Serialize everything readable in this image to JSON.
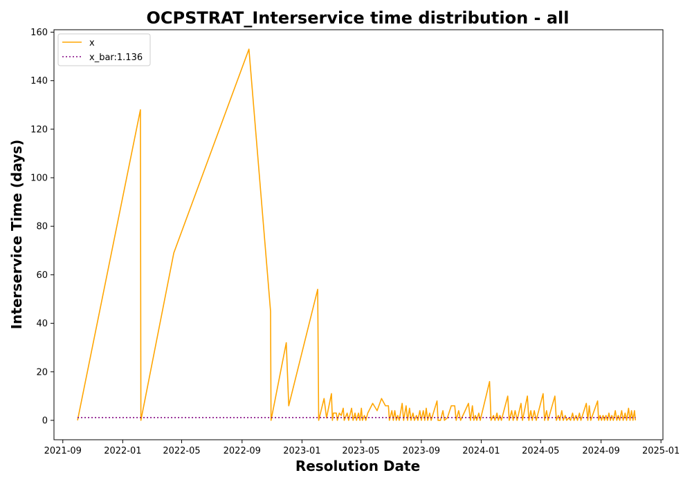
{
  "chart_data": {
    "type": "line",
    "title": "OCPSTRAT_Interservice time distribution - all",
    "xlabel": "Resolution Date",
    "ylabel": "Interservice Time (days)",
    "xlim": [
      "2021-08-14",
      "2025-01-05"
    ],
    "ylim": [
      -8,
      161
    ],
    "xticks": [
      "2021-09",
      "2022-01",
      "2022-05",
      "2022-09",
      "2023-01",
      "2023-05",
      "2023-09",
      "2024-01",
      "2024-05",
      "2024-09",
      "2025-01"
    ],
    "yticks": [
      0,
      20,
      40,
      60,
      80,
      100,
      120,
      140,
      160
    ],
    "grid": false,
    "legend": {
      "position": "upper-left",
      "entries": [
        "x",
        "x_bar:1.136"
      ]
    },
    "series": [
      {
        "name": "x",
        "style": "solid",
        "color": "#ffa500",
        "points": [
          [
            "2021-10-01",
            0
          ],
          [
            "2022-02-06",
            128
          ],
          [
            "2022-02-07",
            0
          ],
          [
            "2022-04-15",
            69
          ],
          [
            "2022-09-15",
            153
          ],
          [
            "2022-10-29",
            45
          ],
          [
            "2022-10-30",
            0
          ],
          [
            "2022-11-30",
            32
          ],
          [
            "2022-12-05",
            6
          ],
          [
            "2023-02-02",
            54
          ],
          [
            "2023-02-04",
            0
          ],
          [
            "2023-02-15",
            9
          ],
          [
            "2023-02-20",
            1
          ],
          [
            "2023-03-02",
            11
          ],
          [
            "2023-03-04",
            0
          ],
          [
            "2023-03-06",
            3
          ],
          [
            "2023-03-12",
            3
          ],
          [
            "2023-03-14",
            0
          ],
          [
            "2023-03-18",
            3
          ],
          [
            "2023-03-22",
            2
          ],
          [
            "2023-03-26",
            5
          ],
          [
            "2023-03-28",
            0
          ],
          [
            "2023-04-03",
            3
          ],
          [
            "2023-04-06",
            0
          ],
          [
            "2023-04-12",
            5
          ],
          [
            "2023-04-15",
            0
          ],
          [
            "2023-04-19",
            3
          ],
          [
            "2023-04-22",
            0
          ],
          [
            "2023-04-26",
            3
          ],
          [
            "2023-04-29",
            0
          ],
          [
            "2023-05-02",
            5
          ],
          [
            "2023-05-04",
            0
          ],
          [
            "2023-05-08",
            2
          ],
          [
            "2023-05-11",
            0
          ],
          [
            "2023-05-15",
            3
          ],
          [
            "2023-05-25",
            7
          ],
          [
            "2023-06-03",
            4
          ],
          [
            "2023-06-12",
            9
          ],
          [
            "2023-06-20",
            6
          ],
          [
            "2023-06-26",
            6
          ],
          [
            "2023-06-28",
            0
          ],
          [
            "2023-07-03",
            4
          ],
          [
            "2023-07-06",
            0
          ],
          [
            "2023-07-09",
            4
          ],
          [
            "2023-07-12",
            0
          ],
          [
            "2023-07-15",
            2
          ],
          [
            "2023-07-18",
            0
          ],
          [
            "2023-07-24",
            7
          ],
          [
            "2023-07-27",
            0
          ],
          [
            "2023-08-01",
            6
          ],
          [
            "2023-08-04",
            0
          ],
          [
            "2023-08-08",
            5
          ],
          [
            "2023-08-11",
            0
          ],
          [
            "2023-08-15",
            3
          ],
          [
            "2023-08-18",
            0
          ],
          [
            "2023-08-22",
            2
          ],
          [
            "2023-08-25",
            0
          ],
          [
            "2023-08-29",
            4
          ],
          [
            "2023-09-01",
            0
          ],
          [
            "2023-09-05",
            4
          ],
          [
            "2023-09-08",
            0
          ],
          [
            "2023-09-11",
            5
          ],
          [
            "2023-09-14",
            0
          ],
          [
            "2023-09-18",
            3
          ],
          [
            "2023-09-21",
            0
          ],
          [
            "2023-10-03",
            8
          ],
          [
            "2023-10-05",
            0
          ],
          [
            "2023-10-10",
            0
          ],
          [
            "2023-10-15",
            4
          ],
          [
            "2023-10-18",
            0
          ],
          [
            "2023-10-24",
            1
          ],
          [
            "2023-11-01",
            6
          ],
          [
            "2023-11-08",
            6
          ],
          [
            "2023-11-11",
            0
          ],
          [
            "2023-11-16",
            4
          ],
          [
            "2023-11-20",
            0
          ],
          [
            "2023-11-27",
            3
          ],
          [
            "2023-12-06",
            7
          ],
          [
            "2023-12-10",
            0
          ],
          [
            "2023-12-14",
            6
          ],
          [
            "2023-12-17",
            0
          ],
          [
            "2023-12-20",
            2
          ],
          [
            "2023-12-23",
            0
          ],
          [
            "2023-12-27",
            3
          ],
          [
            "2023-12-30",
            0
          ],
          [
            "2024-01-18",
            16
          ],
          [
            "2024-01-21",
            0
          ],
          [
            "2024-01-26",
            2
          ],
          [
            "2024-01-29",
            0
          ],
          [
            "2024-02-02",
            3
          ],
          [
            "2024-02-05",
            0
          ],
          [
            "2024-02-08",
            2
          ],
          [
            "2024-02-11",
            0
          ],
          [
            "2024-02-24",
            10
          ],
          [
            "2024-02-27",
            0
          ],
          [
            "2024-03-03",
            4
          ],
          [
            "2024-03-06",
            0
          ],
          [
            "2024-03-10",
            4
          ],
          [
            "2024-03-14",
            0
          ],
          [
            "2024-03-22",
            7
          ],
          [
            "2024-03-25",
            0
          ],
          [
            "2024-04-04",
            10
          ],
          [
            "2024-04-07",
            0
          ],
          [
            "2024-04-11",
            4
          ],
          [
            "2024-04-14",
            0
          ],
          [
            "2024-04-18",
            4
          ],
          [
            "2024-04-22",
            0
          ],
          [
            "2024-05-06",
            11
          ],
          [
            "2024-05-09",
            0
          ],
          [
            "2024-05-13",
            4
          ],
          [
            "2024-05-16",
            0
          ],
          [
            "2024-05-30",
            10
          ],
          [
            "2024-06-02",
            0
          ],
          [
            "2024-06-06",
            2
          ],
          [
            "2024-06-09",
            0
          ],
          [
            "2024-06-13",
            4
          ],
          [
            "2024-06-16",
            0
          ],
          [
            "2024-06-20",
            2
          ],
          [
            "2024-06-23",
            0
          ],
          [
            "2024-06-27",
            1
          ],
          [
            "2024-07-01",
            0
          ],
          [
            "2024-07-05",
            3
          ],
          [
            "2024-07-08",
            0
          ],
          [
            "2024-07-12",
            2
          ],
          [
            "2024-07-15",
            0
          ],
          [
            "2024-07-19",
            3
          ],
          [
            "2024-07-22",
            0
          ],
          [
            "2024-08-02",
            7
          ],
          [
            "2024-08-05",
            0
          ],
          [
            "2024-08-08",
            6
          ],
          [
            "2024-08-11",
            0
          ],
          [
            "2024-08-25",
            8
          ],
          [
            "2024-08-27",
            0
          ],
          [
            "2024-08-30",
            2
          ],
          [
            "2024-09-02",
            0
          ],
          [
            "2024-09-05",
            2
          ],
          [
            "2024-09-08",
            0
          ],
          [
            "2024-09-11",
            2
          ],
          [
            "2024-09-14",
            0
          ],
          [
            "2024-09-17",
            3
          ],
          [
            "2024-09-20",
            0
          ],
          [
            "2024-09-23",
            2
          ],
          [
            "2024-09-26",
            0
          ],
          [
            "2024-09-30",
            4
          ],
          [
            "2024-10-03",
            0
          ],
          [
            "2024-10-06",
            2
          ],
          [
            "2024-10-09",
            0
          ],
          [
            "2024-10-13",
            4
          ],
          [
            "2024-10-16",
            0
          ],
          [
            "2024-10-20",
            3
          ],
          [
            "2024-10-23",
            0
          ],
          [
            "2024-10-27",
            5
          ],
          [
            "2024-10-30",
            0
          ],
          [
            "2024-11-02",
            4
          ],
          [
            "2024-11-05",
            0
          ],
          [
            "2024-11-08",
            4
          ],
          [
            "2024-11-10",
            0
          ]
        ]
      },
      {
        "name": "x_bar:1.136",
        "style": "dotted",
        "color": "#800080",
        "points": [
          [
            "2021-10-01",
            1.136
          ],
          [
            "2024-11-10",
            1.136
          ]
        ]
      }
    ]
  }
}
